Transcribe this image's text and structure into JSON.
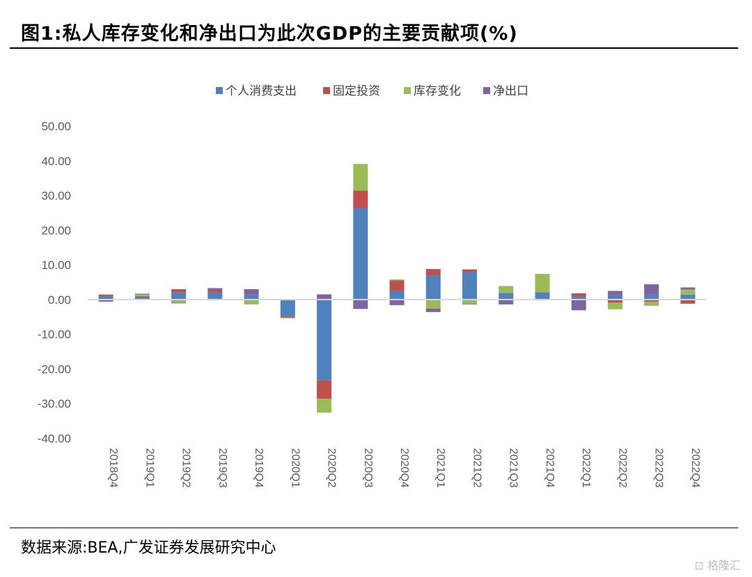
{
  "figure": {
    "title": "图1:私人库存变化和净出口为此次GDP的主要贡献项(%)",
    "source": "数据来源:BEA,广发证券发展研究中心",
    "watermark": "格隆汇"
  },
  "chart_data": {
    "type": "bar",
    "stacked": true,
    "categories": [
      "2018Q4",
      "2019Q1",
      "2019Q2",
      "2019Q3",
      "2019Q4",
      "2020Q1",
      "2020Q2",
      "2020Q3",
      "2020Q4",
      "2021Q1",
      "2021Q2",
      "2021Q3",
      "2021Q4",
      "2022Q1",
      "2022Q2",
      "2022Q3",
      "2022Q4"
    ],
    "series": [
      {
        "name": "个人消费支出",
        "color": "#4f81bd",
        "values": [
          1.0,
          0.8,
          2.1,
          2.1,
          1.4,
          -4.8,
          -23.3,
          26.4,
          2.6,
          7.0,
          7.9,
          1.9,
          2.0,
          0.9,
          1.3,
          1.5,
          1.4
        ]
      },
      {
        "name": "固定投资",
        "color": "#c0504d",
        "values": [
          0.4,
          0.2,
          0.9,
          0.7,
          0.1,
          -0.4,
          -5.3,
          5.0,
          2.9,
          1.8,
          0.8,
          -0.1,
          0.1,
          0.9,
          -0.9,
          -0.6,
          -1.2
        ]
      },
      {
        "name": "库存变化",
        "color": "#9bbb59",
        "values": [
          0.1,
          0.5,
          -0.9,
          -0.2,
          -1.4,
          -0.2,
          -4.0,
          7.7,
          0.3,
          -2.6,
          -1.2,
          2.0,
          5.3,
          0.0,
          -1.9,
          -1.2,
          1.5
        ]
      },
      {
        "name": "净出口",
        "color": "#8064a2",
        "values": [
          -0.6,
          0.2,
          -0.2,
          0.5,
          1.5,
          0.0,
          1.5,
          -2.7,
          -1.6,
          -1.0,
          -0.2,
          -1.3,
          -0.2,
          -3.1,
          1.2,
          2.9,
          0.6
        ]
      }
    ],
    "ylim": [
      -40,
      50
    ],
    "yticks": [
      "50.00",
      "40.00",
      "30.00",
      "20.00",
      "10.00",
      "0.00",
      "-10.00",
      "-20.00",
      "-30.00",
      "-40.00"
    ],
    "ytick_values": [
      50,
      40,
      30,
      20,
      10,
      0,
      -10,
      -20,
      -30,
      -40
    ],
    "legend_position": "top",
    "grid": false
  }
}
